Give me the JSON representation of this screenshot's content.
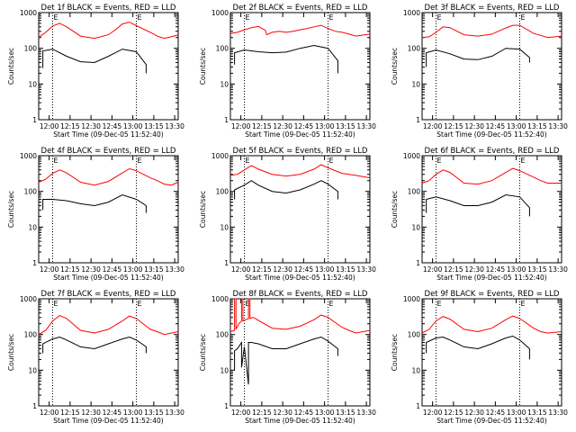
{
  "colors": {
    "events": "#000000",
    "lld": "#ff0000",
    "axes": "#000000",
    "background": "#ffffff"
  },
  "xlabel": "Start Time (09-Dec-05 11:52:40)",
  "ylabel": "Counts/sec",
  "x_ticks": [
    "12:00",
    "12:15",
    "12:30",
    "12:45",
    "13:00",
    "13:15",
    "13:30"
  ],
  "y_ticks": [
    "1",
    "10",
    "100",
    "1000"
  ],
  "saa_label": "E",
  "chart_data": [
    {
      "type": "line",
      "title": "Det 1f BLACK = Events, RED = LLD",
      "x_unit": "minutes after 11:52:40",
      "xlim": [
        0,
        100
      ],
      "ylim": [
        1,
        1000
      ],
      "yscale": "log",
      "markers": [
        10,
        70
      ],
      "series": [
        {
          "role": "events",
          "x": [
            3,
            3,
            10,
            20,
            30,
            40,
            50,
            60,
            70,
            77,
            77
          ],
          "values": [
            28,
            85,
            95,
            60,
            42,
            40,
            60,
            95,
            80,
            35,
            20
          ]
        },
        {
          "role": "lld",
          "x": [
            0,
            5,
            10,
            15,
            20,
            30,
            40,
            50,
            55,
            60,
            65,
            70,
            80,
            85,
            90,
            95,
            100
          ],
          "values": [
            200,
            280,
            420,
            500,
            400,
            220,
            190,
            240,
            330,
            480,
            540,
            430,
            280,
            220,
            190,
            210,
            240
          ]
        }
      ]
    },
    {
      "type": "line",
      "title": "Det 2f BLACK = Events, RED = LLD",
      "x_unit": "minutes after 11:52:40",
      "xlim": [
        0,
        100
      ],
      "ylim": [
        1,
        1000
      ],
      "yscale": "log",
      "markers": [
        10,
        70
      ],
      "series": [
        {
          "role": "events",
          "x": [
            3,
            3,
            10,
            20,
            30,
            40,
            50,
            60,
            70,
            77,
            77
          ],
          "values": [
            35,
            75,
            90,
            80,
            75,
            78,
            100,
            120,
            100,
            45,
            20
          ]
        },
        {
          "role": "lld",
          "x": [
            0,
            5,
            10,
            15,
            20,
            25,
            26,
            30,
            35,
            40,
            45,
            50,
            55,
            60,
            65,
            70,
            75,
            80,
            85,
            90,
            100
          ],
          "values": [
            260,
            280,
            330,
            380,
            410,
            320,
            240,
            280,
            300,
            280,
            300,
            330,
            360,
            400,
            440,
            360,
            300,
            280,
            250,
            220,
            250
          ]
        }
      ]
    },
    {
      "type": "line",
      "title": "Det 3f BLACK = Events, RED = LLD",
      "x_unit": "minutes after 11:52:40",
      "xlim": [
        0,
        100
      ],
      "ylim": [
        1,
        1000
      ],
      "yscale": "log",
      "markers": [
        10,
        70
      ],
      "series": [
        {
          "role": "events",
          "x": [
            3,
            3,
            10,
            20,
            30,
            40,
            50,
            60,
            70,
            77,
            77
          ],
          "values": [
            30,
            75,
            90,
            70,
            50,
            48,
            60,
            100,
            95,
            55,
            40
          ]
        },
        {
          "role": "lld",
          "x": [
            0,
            5,
            10,
            15,
            20,
            30,
            40,
            50,
            60,
            65,
            70,
            80,
            85,
            90,
            100
          ],
          "values": [
            200,
            210,
            280,
            400,
            380,
            240,
            220,
            250,
            370,
            440,
            440,
            260,
            230,
            200,
            220
          ]
        }
      ]
    },
    {
      "type": "line",
      "title": "Det 4f BLACK = Events, RED = LLD",
      "x_unit": "minutes after 11:52:40",
      "xlim": [
        0,
        100
      ],
      "ylim": [
        1,
        1000
      ],
      "yscale": "log",
      "markers": [
        10,
        70
      ],
      "series": [
        {
          "role": "events",
          "x": [
            3,
            3,
            10,
            20,
            30,
            40,
            50,
            60,
            70,
            77,
            77
          ],
          "values": [
            30,
            60,
            60,
            55,
            45,
            40,
            50,
            80,
            60,
            40,
            25
          ]
        },
        {
          "role": "lld",
          "x": [
            0,
            5,
            10,
            15,
            20,
            30,
            40,
            50,
            60,
            65,
            70,
            80,
            85,
            90,
            95,
            100
          ],
          "values": [
            180,
            220,
            320,
            400,
            330,
            180,
            150,
            190,
            330,
            430,
            380,
            240,
            200,
            160,
            150,
            180
          ]
        }
      ]
    },
    {
      "type": "line",
      "title": "Det 5f BLACK = Events, RED = LLD",
      "x_unit": "minutes after 11:52:40",
      "xlim": [
        0,
        100
      ],
      "ylim": [
        1,
        1000
      ],
      "yscale": "log",
      "markers": [
        10,
        70
      ],
      "series": [
        {
          "role": "events",
          "x": [
            3,
            3,
            10,
            15,
            20,
            30,
            40,
            50,
            60,
            65,
            70,
            77,
            77
          ],
          "values": [
            60,
            110,
            150,
            200,
            150,
            100,
            90,
            110,
            160,
            200,
            160,
            100,
            60
          ]
        },
        {
          "role": "lld",
          "x": [
            0,
            5,
            10,
            15,
            20,
            30,
            40,
            50,
            60,
            65,
            70,
            80,
            85,
            90,
            100
          ],
          "values": [
            280,
            300,
            400,
            530,
            420,
            300,
            270,
            300,
            420,
            560,
            460,
            320,
            300,
            280,
            240
          ]
        }
      ]
    },
    {
      "type": "line",
      "title": "Det 6f BLACK = Events, RED = LLD",
      "x_unit": "minutes after 11:52:40",
      "xlim": [
        0,
        100
      ],
      "ylim": [
        1,
        1000
      ],
      "yscale": "log",
      "markers": [
        10,
        70
      ],
      "series": [
        {
          "role": "events",
          "x": [
            3,
            3,
            10,
            20,
            30,
            40,
            50,
            60,
            70,
            77,
            77
          ],
          "values": [
            25,
            60,
            70,
            55,
            40,
            40,
            50,
            80,
            70,
            35,
            20
          ]
        },
        {
          "role": "lld",
          "x": [
            0,
            5,
            10,
            15,
            20,
            30,
            40,
            50,
            60,
            65,
            70,
            80,
            85,
            90,
            100
          ],
          "values": [
            170,
            200,
            300,
            400,
            340,
            170,
            160,
            200,
            340,
            440,
            380,
            250,
            200,
            170,
            170
          ]
        }
      ]
    },
    {
      "type": "line",
      "title": "Det 7f BLACK = Events, RED = LLD",
      "x_unit": "minutes after 11:52:40",
      "xlim": [
        0,
        100
      ],
      "ylim": [
        1,
        1000
      ],
      "yscale": "log",
      "markers": [
        10,
        70
      ],
      "series": [
        {
          "role": "events",
          "x": [
            3,
            3,
            10,
            15,
            20,
            30,
            40,
            50,
            60,
            65,
            70,
            77,
            77
          ],
          "values": [
            30,
            55,
            75,
            85,
            70,
            45,
            40,
            55,
            75,
            85,
            70,
            45,
            30
          ]
        },
        {
          "role": "lld",
          "x": [
            0,
            5,
            10,
            15,
            20,
            30,
            40,
            50,
            60,
            65,
            70,
            80,
            85,
            90,
            100
          ],
          "values": [
            100,
            130,
            240,
            340,
            280,
            130,
            110,
            140,
            240,
            330,
            280,
            140,
            120,
            100,
            120
          ]
        }
      ]
    },
    {
      "type": "line",
      "title": "Det 8f BLACK = Events, RED = LLD",
      "x_unit": "minutes after 11:52:40",
      "xlim": [
        0,
        100
      ],
      "ylim": [
        1,
        1000
      ],
      "yscale": "log",
      "markers": [
        10,
        70
      ],
      "series": [
        {
          "role": "events",
          "x": [
            3,
            3,
            5,
            8,
            8,
            10,
            13,
            13,
            15,
            20,
            30,
            40,
            50,
            60,
            65,
            70,
            77,
            77
          ],
          "values": [
            10,
            35,
            40,
            60,
            12,
            45,
            4,
            60,
            60,
            55,
            40,
            40,
            55,
            75,
            85,
            65,
            40,
            25
          ]
        },
        {
          "role": "lld",
          "x": [
            0,
            3,
            3,
            4,
            4,
            6,
            8,
            8,
            9,
            9,
            11,
            13,
            13,
            14,
            14,
            16,
            18,
            20,
            30,
            40,
            50,
            60,
            65,
            70,
            80,
            85,
            90,
            100
          ],
          "values": [
            120,
            130,
            1000,
            1000,
            140,
            200,
            240,
            1000,
            1000,
            240,
            260,
            280,
            1000,
            1000,
            280,
            300,
            280,
            250,
            150,
            140,
            170,
            260,
            350,
            300,
            160,
            130,
            110,
            130
          ]
        }
      ]
    },
    {
      "type": "line",
      "title": "Det 9f BLACK = Events, RED = LLD",
      "x_unit": "minutes after 11:52:40",
      "xlim": [
        0,
        100
      ],
      "ylim": [
        1,
        1000
      ],
      "yscale": "log",
      "markers": [
        10,
        70
      ],
      "series": [
        {
          "role": "events",
          "x": [
            3,
            3,
            10,
            15,
            20,
            30,
            40,
            50,
            60,
            65,
            70,
            77,
            77
          ],
          "values": [
            30,
            60,
            80,
            85,
            70,
            45,
            40,
            55,
            80,
            90,
            70,
            40,
            20
          ]
        },
        {
          "role": "lld",
          "x": [
            0,
            5,
            10,
            15,
            20,
            30,
            40,
            50,
            60,
            65,
            70,
            80,
            85,
            90,
            100
          ],
          "values": [
            110,
            140,
            240,
            320,
            270,
            140,
            120,
            150,
            260,
            330,
            280,
            150,
            120,
            110,
            120
          ]
        }
      ]
    }
  ]
}
